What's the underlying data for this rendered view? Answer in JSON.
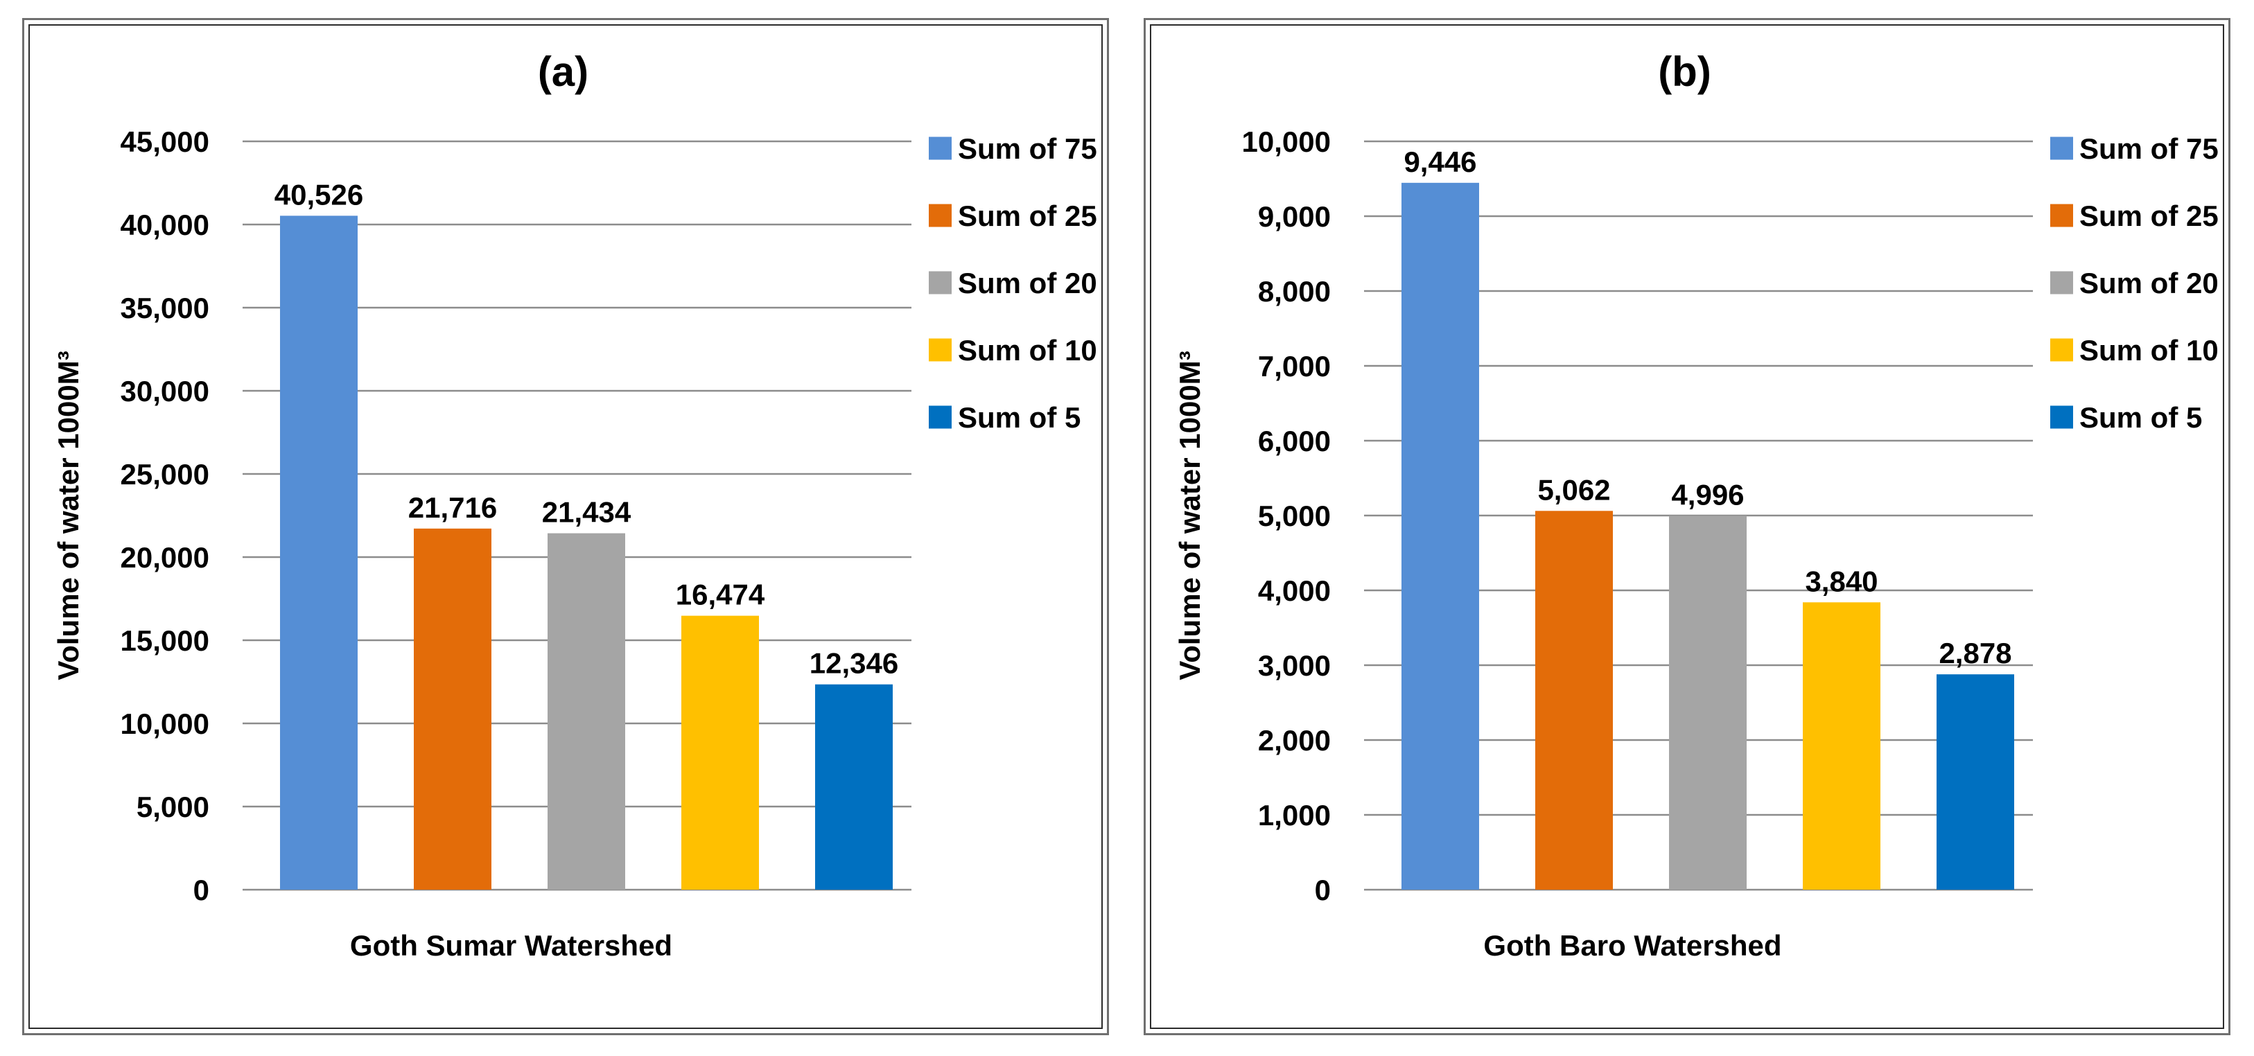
{
  "chart_data": [
    {
      "type": "bar",
      "title": "(a)",
      "xlabel": "Goth Sumar Watershed",
      "ylabel": "Volume of water 1000M³",
      "ylim": [
        0,
        45000
      ],
      "yticks": [
        "0",
        "5,000",
        "10,000",
        "15,000",
        "20,000",
        "25,000",
        "30,000",
        "35,000",
        "40,000",
        "45,000"
      ],
      "grid": true,
      "legend_position": "right",
      "series": [
        {
          "name": "Sum of 75",
          "value": 40526,
          "label": "40,526",
          "color": "#558ed5"
        },
        {
          "name": "Sum of 25",
          "value": 21716,
          "label": "21,716",
          "color": "#e36c09"
        },
        {
          "name": "Sum of 20",
          "value": 21434,
          "label": "21,434",
          "color": "#a5a5a5"
        },
        {
          "name": "Sum of 10",
          "value": 16474,
          "label": "16,474",
          "color": "#ffc000"
        },
        {
          "name": "Sum of 5",
          "value": 12346,
          "label": "12,346",
          "color": "#0070c0"
        }
      ]
    },
    {
      "type": "bar",
      "title": "(b)",
      "xlabel": "Goth Baro Watershed",
      "ylabel": "Volume of water 1000M³",
      "ylim": [
        0,
        10000
      ],
      "yticks": [
        "0",
        "1,000",
        "2,000",
        "3,000",
        "4,000",
        "5,000",
        "6,000",
        "7,000",
        "8,000",
        "9,000",
        "10,000"
      ],
      "grid": true,
      "legend_position": "right",
      "series": [
        {
          "name": "Sum of 75",
          "value": 9446,
          "label": "9,446",
          "color": "#558ed5"
        },
        {
          "name": "Sum of 25",
          "value": 5062,
          "label": "5,062",
          "color": "#e36c09"
        },
        {
          "name": "Sum of 20",
          "value": 4996,
          "label": "4,996",
          "color": "#a5a5a5"
        },
        {
          "name": "Sum of 10",
          "value": 3840,
          "label": "3,840",
          "color": "#ffc000"
        },
        {
          "name": "Sum of 5",
          "value": 2878,
          "label": "2,878",
          "color": "#0070c0"
        }
      ]
    }
  ]
}
